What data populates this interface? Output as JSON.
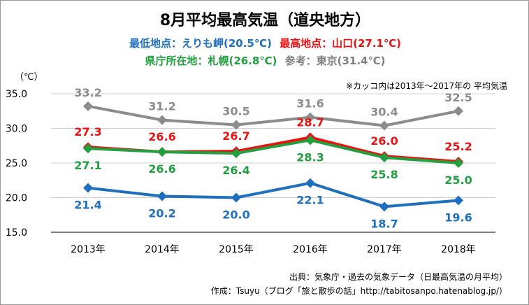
{
  "title": "8月平均最高気温（道央地方）",
  "legend_line1": [
    {
      "text": "最低地点：えりも岬(20.5℃)",
      "color": "#1f6fbf"
    },
    {
      "text": "最高地点：山口(27.1℃)",
      "color": "#ee1111"
    }
  ],
  "legend_line2": [
    {
      "text": "県庁所在地：札幌(26.8℃)",
      "color": "#22a040"
    },
    {
      "text": "参考：東京(31.4℃)",
      "color": "#808080"
    }
  ],
  "unit": "（℃）",
  "note": "※カッコ内は2013年～2017年の 平均気温",
  "source_line1": "出典：気象庁・過去の気象データ（日最高気温の月平均）",
  "source_line2": "作成：Tsuyu（ブログ「旅と散歩の話」http://tabitosanpo.hatenablog.jp/）",
  "chart_data": {
    "type": "line",
    "categories": [
      "2013年",
      "2014年",
      "2015年",
      "2016年",
      "2017年",
      "2018年"
    ],
    "ylim": [
      15.0,
      35.0
    ],
    "yticks": [
      "15.0",
      "20.0",
      "25.0",
      "30.0",
      "35.0"
    ],
    "grid": true,
    "series": [
      {
        "key": "tokyo",
        "color": "#8c8c8c",
        "values": [
          33.2,
          31.2,
          30.5,
          31.6,
          30.4,
          32.5
        ],
        "labels": [
          "33.2",
          "31.2",
          "30.5",
          "31.6",
          "30.4",
          "32.5"
        ]
      },
      {
        "key": "yamaguchi",
        "color": "#ee1111",
        "values": [
          27.3,
          26.6,
          26.7,
          28.7,
          26.0,
          25.2
        ],
        "labels": [
          "27.3",
          "26.6",
          "26.7",
          "28.7",
          "26.0",
          "25.2"
        ]
      },
      {
        "key": "sapporo",
        "color": "#22a040",
        "values": [
          27.1,
          26.6,
          26.4,
          28.3,
          25.8,
          25.0
        ],
        "labels": [
          "27.1",
          "26.6",
          "26.4",
          "28.3",
          "25.8",
          "25.0"
        ]
      },
      {
        "key": "erimo",
        "color": "#1f6fbf",
        "values": [
          21.4,
          20.2,
          20.0,
          22.1,
          18.7,
          19.6
        ],
        "labels": [
          "21.4",
          "20.2",
          "20.0",
          "22.1",
          "18.7",
          "19.6"
        ]
      }
    ]
  }
}
